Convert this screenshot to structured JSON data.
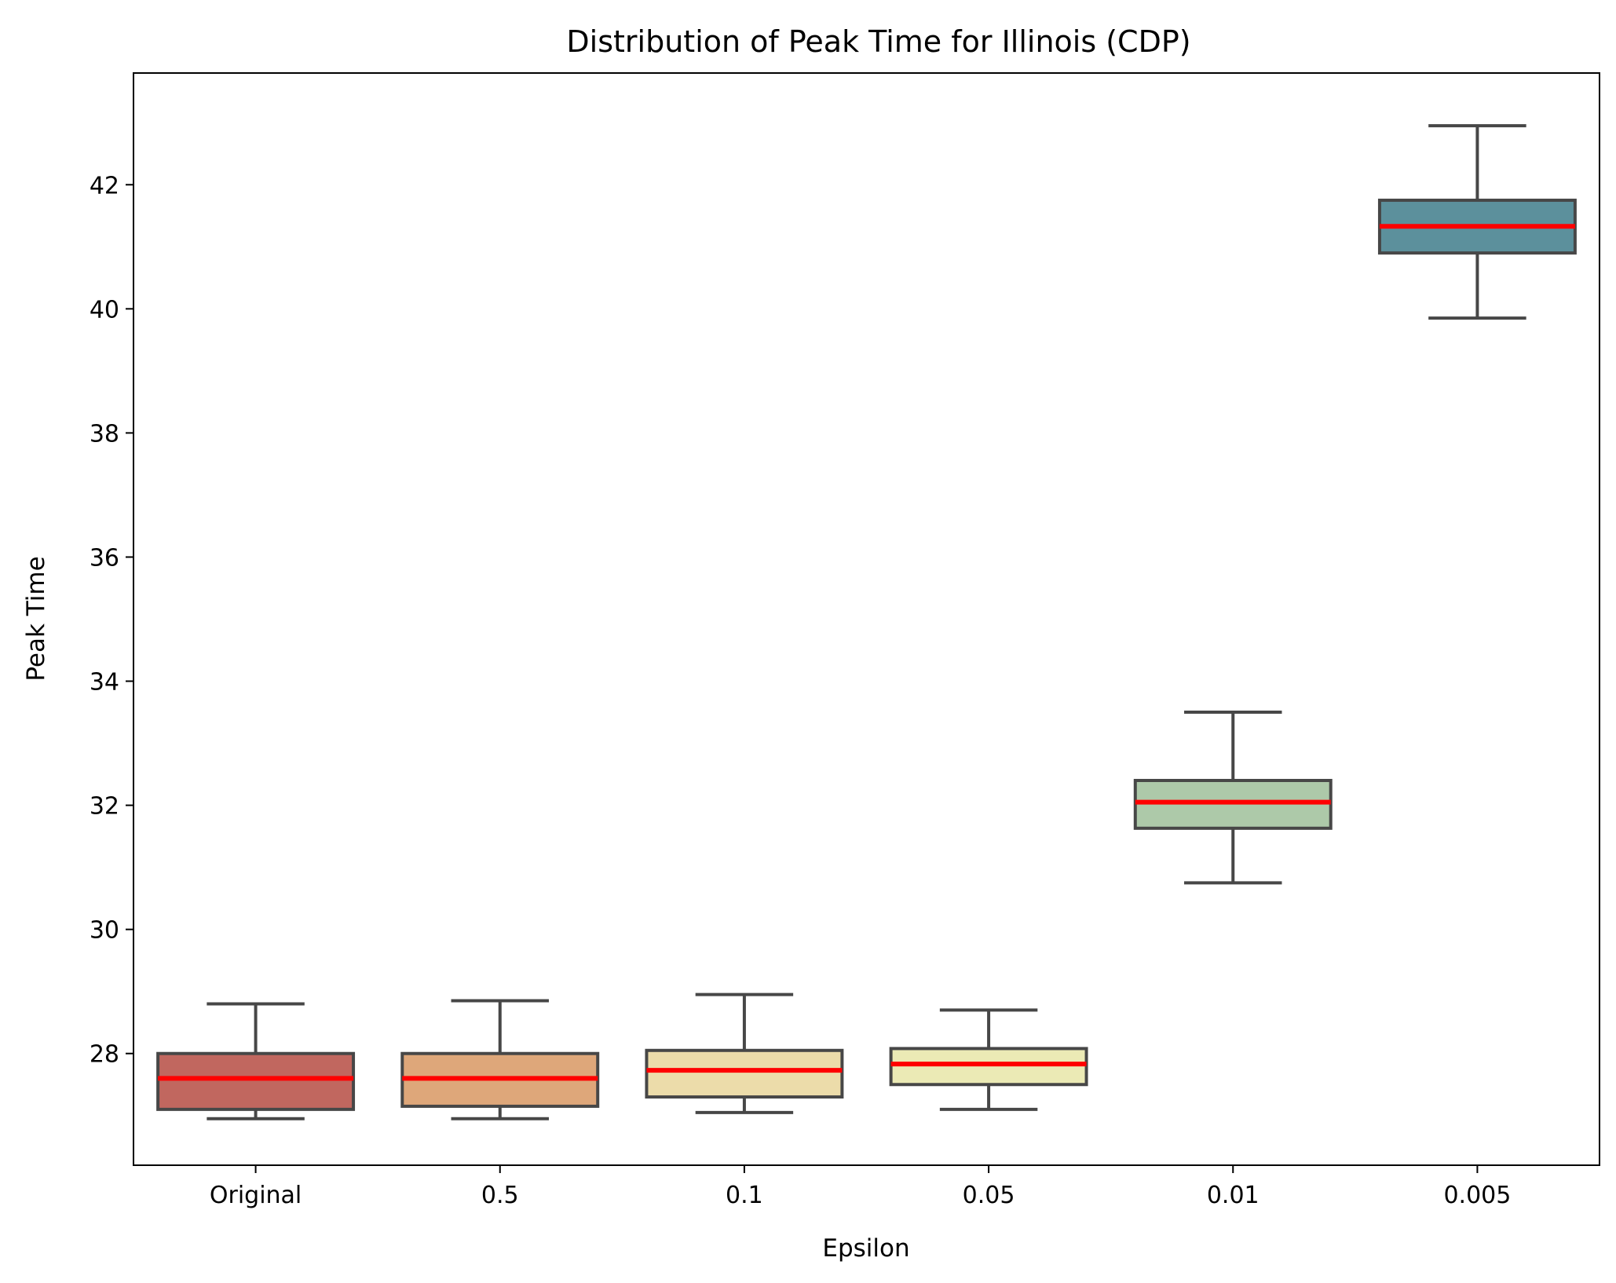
{
  "chart_data": {
    "type": "box",
    "title": "Distribution of Peak Time for Illinois (CDP)",
    "xlabel": "Epsilon",
    "ylabel": "Peak Time",
    "categories": [
      "Original",
      "0.5",
      "0.1",
      "0.05",
      "0.01",
      "0.005"
    ],
    "ylim": [
      26.2,
      43.8
    ],
    "yticks": [
      28,
      30,
      32,
      34,
      36,
      38,
      40,
      42
    ],
    "boxes": [
      {
        "category": "Original",
        "whisker_low": 26.95,
        "q1": 27.1,
        "median": 27.6,
        "q3": 28.0,
        "whisker_high": 28.8,
        "color": "#c1675f"
      },
      {
        "category": "0.5",
        "whisker_low": 26.95,
        "q1": 27.15,
        "median": 27.6,
        "q3": 28.0,
        "whisker_high": 28.85,
        "color": "#dea77a"
      },
      {
        "category": "0.1",
        "whisker_low": 27.05,
        "q1": 27.3,
        "median": 27.73,
        "q3": 28.05,
        "whisker_high": 28.95,
        "color": "#ecdcaa"
      },
      {
        "category": "0.05",
        "whisker_low": 27.1,
        "q1": 27.5,
        "median": 27.83,
        "q3": 28.08,
        "whisker_high": 28.7,
        "color": "#ebeab5"
      },
      {
        "category": "0.01",
        "whisker_low": 30.75,
        "q1": 31.63,
        "median": 32.05,
        "q3": 32.4,
        "whisker_high": 33.5,
        "color": "#adc9a9"
      },
      {
        "category": "0.005",
        "whisker_low": 39.85,
        "q1": 40.9,
        "median": 41.33,
        "q3": 41.75,
        "whisker_high": 42.95,
        "color": "#5c909c"
      }
    ],
    "median_color": "#ff0000",
    "edge_color": "#474747",
    "grid": false,
    "legend": "none"
  }
}
